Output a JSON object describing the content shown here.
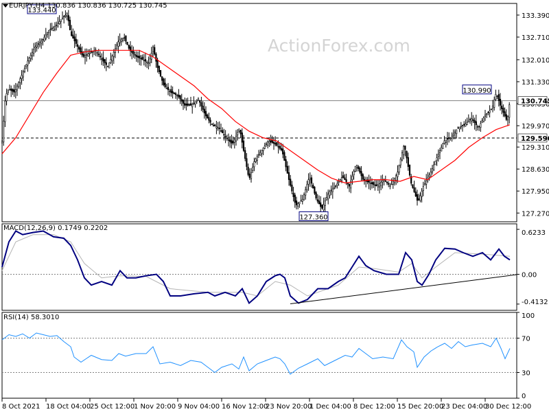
{
  "watermark": "ActionForex.com",
  "price_panel": {
    "header": "EURJPY,H4 130.836 130.836 130.725 130.745",
    "y_ticks": [
      "133.390",
      "132.710",
      "132.010",
      "131.330",
      "130.650",
      "129.970",
      "129.310",
      "128.630",
      "127.950",
      "127.270"
    ],
    "current_price": "130.745",
    "support_level": "129.590",
    "annotations": [
      "133.440",
      "127.360",
      "130.990"
    ]
  },
  "macd_panel": {
    "header": "MACD(12,26,9) 0.1749 0.2202",
    "y_ticks": [
      "0.6233",
      "0.00",
      "-0.4132"
    ]
  },
  "rsi_panel": {
    "header": "RSI(14) 58.3010",
    "y_ticks": [
      "100",
      "70",
      "30",
      "0"
    ]
  },
  "x_ticks": [
    "8 Oct 2021",
    "18 Oct 04:00",
    "25 Oct 12:00",
    "1 Nov 20:00",
    "9 Nov 04:00",
    "16 Nov 12:00",
    "23 Nov 20:00",
    "1 Dec 04:00",
    "8 Dec 12:00",
    "15 Dec 20:00",
    "23 Dec 04:00",
    "30 Dec 12:00"
  ],
  "colors": {
    "candles": "#000000",
    "moving_average": "#ff0000",
    "macd_line": "#000080",
    "signal_line": "#b4b4b4",
    "rsi_line": "#1e90ff",
    "trendline": "#000000",
    "grid": "#808080"
  },
  "chart_data": [
    {
      "type": "candlestick",
      "title": "EURJPY,H4",
      "x": [
        "8 Oct 2021",
        "18 Oct 04:00",
        "25 Oct 12:00",
        "1 Nov 20:00",
        "9 Nov 04:00",
        "16 Nov 12:00",
        "23 Nov 20:00",
        "1 Dec 04:00",
        "8 Dec 12:00",
        "15 Dec 20:00",
        "23 Dec 04:00",
        "30 Dec 12:00"
      ],
      "ylim": [
        127.0,
        133.75
      ],
      "close_path": [
        [
          0,
          129.5
        ],
        [
          5,
          130.9
        ],
        [
          10,
          131.1
        ],
        [
          18,
          131.0
        ],
        [
          28,
          131.5
        ],
        [
          38,
          132.0
        ],
        [
          48,
          132.4
        ],
        [
          58,
          132.6
        ],
        [
          68,
          132.9
        ],
        [
          78,
          133.05
        ],
        [
          88,
          133.3
        ],
        [
          95,
          133.44
        ],
        [
          100,
          132.8
        ],
        [
          108,
          132.5
        ],
        [
          118,
          132.1
        ],
        [
          126,
          132.2
        ],
        [
          136,
          132.3
        ],
        [
          146,
          132.0
        ],
        [
          154,
          131.8
        ],
        [
          160,
          132.1
        ],
        [
          170,
          132.6
        ],
        [
          178,
          132.7
        ],
        [
          186,
          132.3
        ],
        [
          196,
          132.1
        ],
        [
          206,
          132.0
        ],
        [
          214,
          131.9
        ],
        [
          220,
          132.4
        ],
        [
          226,
          131.8
        ],
        [
          236,
          131.2
        ],
        [
          246,
          131.0
        ],
        [
          256,
          130.9
        ],
        [
          266,
          130.6
        ],
        [
          276,
          130.6
        ],
        [
          286,
          130.8
        ],
        [
          296,
          130.3
        ],
        [
          306,
          130.0
        ],
        [
          316,
          129.9
        ],
        [
          326,
          129.6
        ],
        [
          336,
          129.4
        ],
        [
          346,
          129.9
        ],
        [
          352,
          129.2
        ],
        [
          360,
          128.3
        ],
        [
          368,
          128.9
        ],
        [
          378,
          129.2
        ],
        [
          388,
          129.5
        ],
        [
          398,
          129.4
        ],
        [
          408,
          129.2
        ],
        [
          418,
          128.3
        ],
        [
          428,
          127.5
        ],
        [
          438,
          127.7
        ],
        [
          448,
          128.4
        ],
        [
          458,
          127.7
        ],
        [
          466,
          127.4
        ],
        [
          476,
          127.9
        ],
        [
          486,
          128.1
        ],
        [
          496,
          128.4
        ],
        [
          506,
          128.1
        ],
        [
          516,
          128.8
        ],
        [
          526,
          128.3
        ],
        [
          536,
          128.2
        ],
        [
          546,
          128.1
        ],
        [
          556,
          128.3
        ],
        [
          566,
          128.1
        ],
        [
          576,
          128.5
        ],
        [
          586,
          129.4
        ],
        [
          596,
          128.2
        ],
        [
          606,
          127.6
        ],
        [
          614,
          128.1
        ],
        [
          624,
          128.5
        ],
        [
          634,
          129.0
        ],
        [
          644,
          129.5
        ],
        [
          654,
          129.6
        ],
        [
          664,
          129.9
        ],
        [
          674,
          130.0
        ],
        [
          684,
          130.2
        ],
        [
          694,
          129.9
        ],
        [
          704,
          130.3
        ],
        [
          714,
          130.5
        ],
        [
          720,
          130.99
        ],
        [
          726,
          130.6
        ],
        [
          732,
          130.3
        ],
        [
          736,
          130.1
        ],
        [
          740,
          130.745
        ]
      ],
      "moving_average_path": [
        [
          0,
          129.1
        ],
        [
          20,
          129.6
        ],
        [
          40,
          130.3
        ],
        [
          60,
          131.0
        ],
        [
          80,
          131.6
        ],
        [
          100,
          132.15
        ],
        [
          120,
          132.25
        ],
        [
          140,
          132.3
        ],
        [
          160,
          132.3
        ],
        [
          180,
          132.3
        ],
        [
          200,
          132.3
        ],
        [
          220,
          132.1
        ],
        [
          240,
          131.8
        ],
        [
          260,
          131.5
        ],
        [
          280,
          131.2
        ],
        [
          300,
          130.8
        ],
        [
          320,
          130.5
        ],
        [
          340,
          130.1
        ],
        [
          360,
          129.8
        ],
        [
          380,
          129.6
        ],
        [
          400,
          129.5
        ],
        [
          420,
          129.2
        ],
        [
          440,
          128.9
        ],
        [
          460,
          128.6
        ],
        [
          480,
          128.35
        ],
        [
          500,
          128.2
        ],
        [
          520,
          128.25
        ],
        [
          540,
          128.3
        ],
        [
          560,
          128.3
        ],
        [
          580,
          128.25
        ],
        [
          600,
          128.4
        ],
        [
          620,
          128.3
        ],
        [
          640,
          128.6
        ],
        [
          660,
          128.9
        ],
        [
          680,
          129.3
        ],
        [
          700,
          129.6
        ],
        [
          720,
          129.85
        ],
        [
          740,
          130.0
        ]
      ],
      "levels": [
        {
          "name": "current",
          "value": 130.745
        },
        {
          "name": "support",
          "value": 129.59
        }
      ]
    },
    {
      "type": "line",
      "title": "MACD(12,26,9)",
      "ylim": [
        -0.5,
        0.7
      ],
      "zero_line": 0.0,
      "series": [
        {
          "name": "MACD",
          "points": [
            [
              0,
              0.1
            ],
            [
              10,
              0.45
            ],
            [
              20,
              0.6
            ],
            [
              30,
              0.55
            ],
            [
              45,
              0.58
            ],
            [
              60,
              0.6
            ],
            [
              75,
              0.52
            ],
            [
              90,
              0.5
            ],
            [
              100,
              0.4
            ],
            [
              110,
              0.2
            ],
            [
              120,
              -0.05
            ],
            [
              130,
              -0.15
            ],
            [
              145,
              -0.1
            ],
            [
              160,
              -0.15
            ],
            [
              172,
              0.05
            ],
            [
              182,
              -0.05
            ],
            [
              195,
              -0.05
            ],
            [
              210,
              -0.02
            ],
            [
              225,
              0.0
            ],
            [
              235,
              -0.1
            ],
            [
              245,
              -0.3
            ],
            [
              260,
              -0.3
            ],
            [
              280,
              -0.27
            ],
            [
              300,
              -0.25
            ],
            [
              310,
              -0.3
            ],
            [
              325,
              -0.25
            ],
            [
              340,
              -0.3
            ],
            [
              350,
              -0.2
            ],
            [
              360,
              -0.4
            ],
            [
              372,
              -0.3
            ],
            [
              385,
              -0.1
            ],
            [
              398,
              -0.02
            ],
            [
              405,
              0.0
            ],
            [
              412,
              -0.05
            ],
            [
              420,
              -0.3
            ],
            [
              432,
              -0.4
            ],
            [
              445,
              -0.35
            ],
            [
              460,
              -0.2
            ],
            [
              475,
              -0.2
            ],
            [
              490,
              -0.1
            ],
            [
              500,
              -0.05
            ],
            [
              510,
              0.1
            ],
            [
              520,
              0.25
            ],
            [
              530,
              0.12
            ],
            [
              542,
              0.05
            ],
            [
              560,
              0.0
            ],
            [
              578,
              0.0
            ],
            [
              588,
              0.3
            ],
            [
              597,
              0.2
            ],
            [
              605,
              -0.1
            ],
            [
              612,
              -0.15
            ],
            [
              622,
              0.0
            ],
            [
              632,
              0.2
            ],
            [
              645,
              0.36
            ],
            [
              660,
              0.35
            ],
            [
              672,
              0.3
            ],
            [
              686,
              0.25
            ],
            [
              700,
              0.3
            ],
            [
              712,
              0.2
            ],
            [
              724,
              0.35
            ],
            [
              732,
              0.25
            ],
            [
              740,
              0.2
            ]
          ]
        },
        {
          "name": "Signal",
          "points": [
            [
              0,
              0.05
            ],
            [
              20,
              0.45
            ],
            [
              45,
              0.55
            ],
            [
              75,
              0.55
            ],
            [
              100,
              0.45
            ],
            [
              120,
              0.15
            ],
            [
              145,
              -0.05
            ],
            [
              172,
              -0.02
            ],
            [
              210,
              -0.03
            ],
            [
              245,
              -0.2
            ],
            [
              300,
              -0.25
            ],
            [
              350,
              -0.25
            ],
            [
              372,
              -0.3
            ],
            [
              398,
              -0.1
            ],
            [
              420,
              -0.15
            ],
            [
              445,
              -0.3
            ],
            [
              490,
              -0.15
            ],
            [
              520,
              0.1
            ],
            [
              542,
              0.08
            ],
            [
              578,
              0.03
            ],
            [
              597,
              0.15
            ],
            [
              612,
              -0.05
            ],
            [
              632,
              0.1
            ],
            [
              660,
              0.3
            ],
            [
              700,
              0.28
            ],
            [
              740,
              0.25
            ]
          ]
        }
      ],
      "trendline": [
        [
          420,
          -0.41
        ],
        [
          750,
          -0.005
        ]
      ]
    },
    {
      "type": "line",
      "title": "RSI(14)",
      "ylim": [
        0,
        100
      ],
      "levels": [
        70,
        30
      ],
      "series": [
        {
          "name": "RSI(14)",
          "points": [
            [
              0,
              68
            ],
            [
              10,
              74
            ],
            [
              20,
              72
            ],
            [
              30,
              75
            ],
            [
              40,
              70
            ],
            [
              50,
              76
            ],
            [
              60,
              74
            ],
            [
              70,
              72
            ],
            [
              80,
              73
            ],
            [
              90,
              66
            ],
            [
              100,
              60
            ],
            [
              105,
              48
            ],
            [
              115,
              42
            ],
            [
              130,
              50
            ],
            [
              145,
              45
            ],
            [
              160,
              44
            ],
            [
              170,
              52
            ],
            [
              180,
              49
            ],
            [
              195,
              52
            ],
            [
              210,
              52
            ],
            [
              220,
              60
            ],
            [
              230,
              40
            ],
            [
              245,
              42
            ],
            [
              260,
              38
            ],
            [
              275,
              44
            ],
            [
              290,
              42
            ],
            [
              300,
              36
            ],
            [
              310,
              30
            ],
            [
              320,
              36
            ],
            [
              335,
              40
            ],
            [
              345,
              34
            ],
            [
              352,
              48
            ],
            [
              360,
              32
            ],
            [
              372,
              40
            ],
            [
              385,
              44
            ],
            [
              398,
              48
            ],
            [
              405,
              46
            ],
            [
              412,
              40
            ],
            [
              420,
              28
            ],
            [
              432,
              35
            ],
            [
              445,
              40
            ],
            [
              460,
              46
            ],
            [
              470,
              38
            ],
            [
              480,
              42
            ],
            [
              490,
              46
            ],
            [
              500,
              50
            ],
            [
              510,
              48
            ],
            [
              520,
              58
            ],
            [
              530,
              52
            ],
            [
              540,
              46
            ],
            [
              555,
              48
            ],
            [
              570,
              46
            ],
            [
              582,
              68
            ],
            [
              590,
              60
            ],
            [
              600,
              54
            ],
            [
              605,
              36
            ],
            [
              615,
              48
            ],
            [
              625,
              55
            ],
            [
              635,
              60
            ],
            [
              645,
              64
            ],
            [
              655,
              58
            ],
            [
              665,
              66
            ],
            [
              675,
              60
            ],
            [
              685,
              62
            ],
            [
              700,
              64
            ],
            [
              712,
              60
            ],
            [
              720,
              70
            ],
            [
              727,
              58
            ],
            [
              733,
              46
            ],
            [
              740,
              58
            ]
          ]
        }
      ]
    }
  ]
}
